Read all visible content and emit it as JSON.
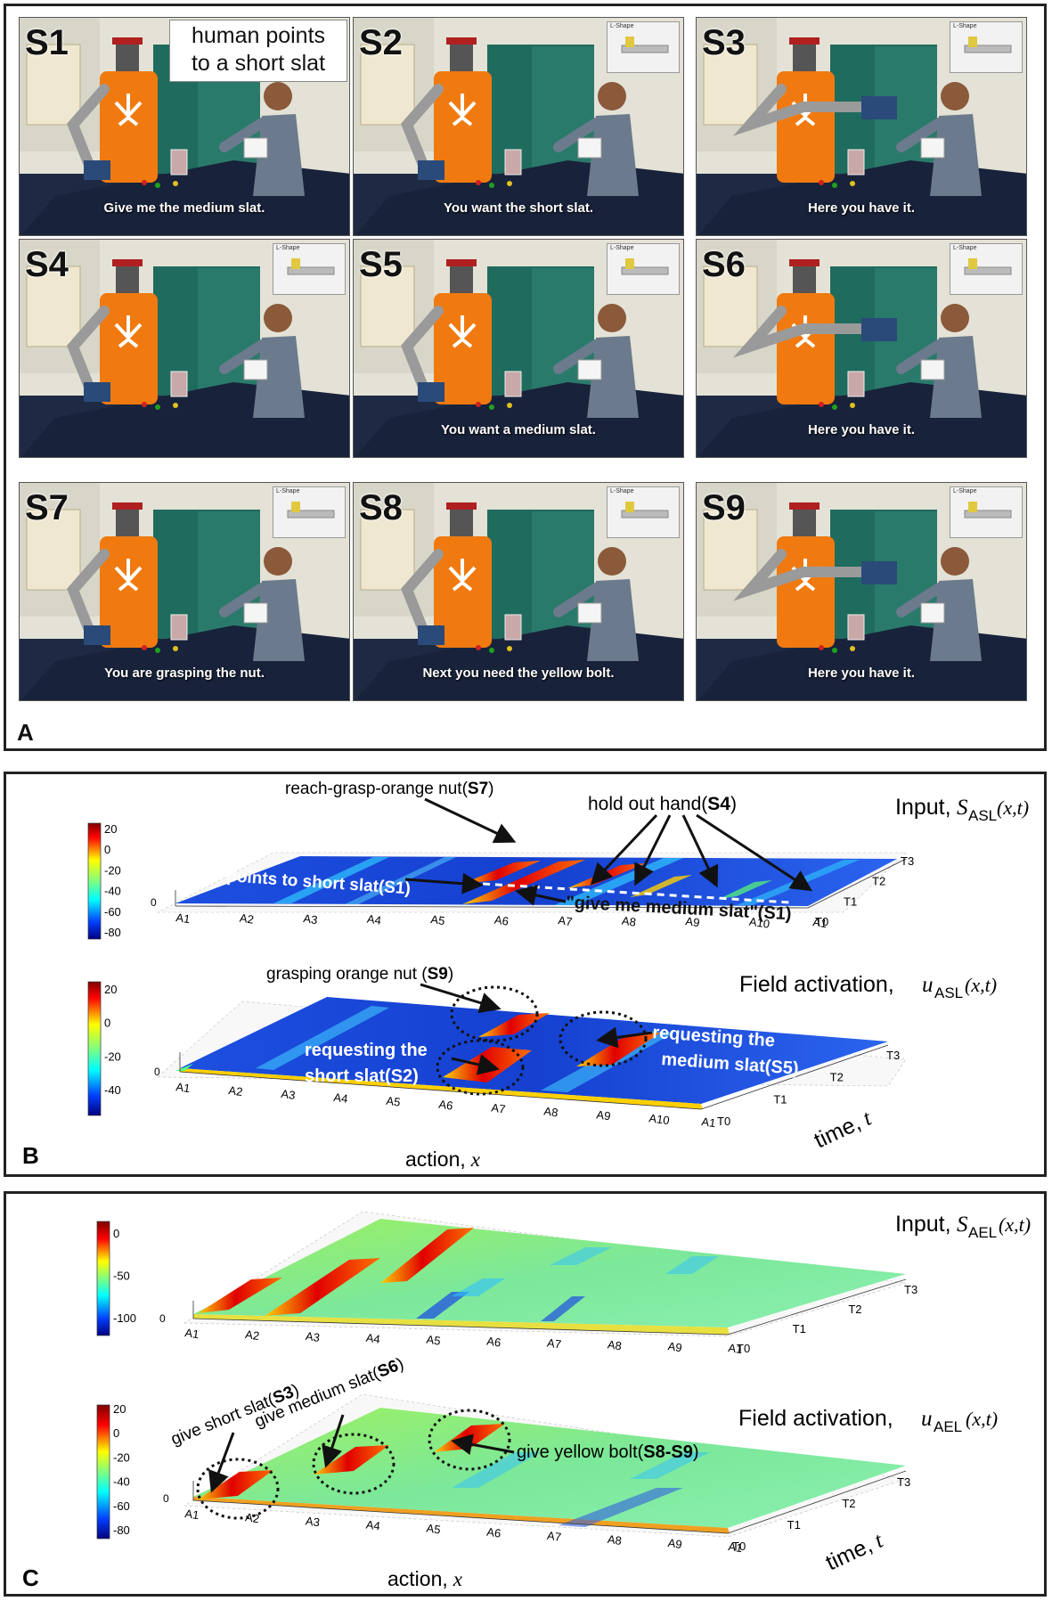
{
  "panel_a": {
    "letter": "A",
    "shots": [
      {
        "label": "S1",
        "caption": "Give me the medium slat."
      },
      {
        "label": "S2",
        "caption": "You want the short slat."
      },
      {
        "label": "S3",
        "caption": "Here you have it."
      },
      {
        "label": "S4",
        "caption": ""
      },
      {
        "label": "S5",
        "caption": "You want a medium slat."
      },
      {
        "label": "S6",
        "caption": "Here you have it."
      },
      {
        "label": "S7",
        "caption": "You are grasping the nut."
      },
      {
        "label": "S8",
        "caption": "Next you need the yellow bolt."
      },
      {
        "label": "S9",
        "caption": "Here you have it."
      }
    ],
    "note_line1": "human points",
    "note_line2": "to a short slat",
    "inset_label": "L-Shape"
  },
  "panel_b": {
    "letter": "B",
    "top": {
      "title": "Input,",
      "var": "S",
      "sub": "ASL",
      "args": "(x,t)",
      "colorbar_ticks": [
        "20",
        "0",
        "-20",
        "-40",
        "-60",
        "-80"
      ],
      "z_tick": "0",
      "x_ticks": [
        "A1",
        "A2",
        "A3",
        "A4",
        "A5",
        "A6",
        "A7",
        "A8",
        "A9",
        "A10",
        "A1"
      ],
      "t_ticks": [
        "T0",
        "T1",
        "T2",
        "T3"
      ],
      "annotations": {
        "reach": "reach-grasp-orange nut(",
        "reach_bold": "S7",
        "hold": "hold out hand(",
        "hold_bold": "S4",
        "points": "points to short slat(",
        "points_bold": "S1",
        "give": "\"give me medium slat\"(",
        "give_bold": "S1",
        "close": ")"
      }
    },
    "bottom": {
      "title": "Field activation,",
      "var": "u",
      "sub": "ASL",
      "args": "(x,t)",
      "colorbar_ticks": [
        "20",
        "0",
        "-20",
        "-40"
      ],
      "z_tick": "0",
      "x_ticks": [
        "A1",
        "A2",
        "A3",
        "A4",
        "A5",
        "A6",
        "A7",
        "A8",
        "A9",
        "A10",
        "A1"
      ],
      "t_ticks": [
        "T0",
        "T1",
        "T2",
        "T3"
      ],
      "xlabel": "action,",
      "xvar": "x",
      "tlabel": "time,",
      "tvar": "t",
      "annotations": {
        "grasp": "grasping orange nut (",
        "grasp_bold": "S9",
        "req1_l1": "requesting the",
        "req1_l2": "short slat(",
        "req1_bold": "S2",
        "req2_l1": "requesting the",
        "req2_l2": "medium slat(",
        "req2_bold": "S5",
        "close": ")"
      }
    }
  },
  "panel_c": {
    "letter": "C",
    "top": {
      "title": "Input,",
      "var": "S",
      "sub": "AEL",
      "args": "(x,t)",
      "colorbar_ticks": [
        "0",
        "-50",
        "-100"
      ],
      "z_tick": "0",
      "x_ticks": [
        "A1",
        "A2",
        "A3",
        "A4",
        "A5",
        "A6",
        "A7",
        "A8",
        "A9",
        "A1"
      ],
      "t_ticks": [
        "T0",
        "T1",
        "T2",
        "T3"
      ]
    },
    "bottom": {
      "title": "Field activation,",
      "var": "u",
      "sub": "AEL",
      "args": "(x,t)",
      "colorbar_ticks": [
        "20",
        "0",
        "-20",
        "-40",
        "-60",
        "-80"
      ],
      "z_tick": "0",
      "x_ticks": [
        "A1",
        "A2",
        "A3",
        "A4",
        "A5",
        "A6",
        "A7",
        "A8",
        "A9",
        "A1"
      ],
      "t_ticks": [
        "T0",
        "T1",
        "T2",
        "T3"
      ],
      "xlabel": "action,",
      "xvar": "x",
      "tlabel": "time,",
      "tvar": "t",
      "annotations": {
        "short": "give short slat(",
        "short_bold": "S3",
        "medium": "give medium slat(",
        "medium_bold": "S6",
        "yellow": "give yellow bolt(",
        "yellow_bold": "S8-S9",
        "close": ")"
      }
    }
  }
}
